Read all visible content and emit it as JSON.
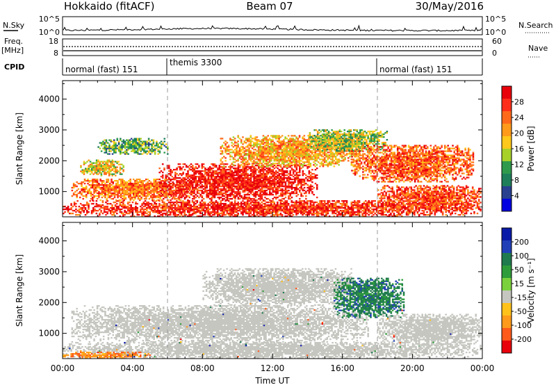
{
  "header": {
    "title": "Hokkaido (fitACF)",
    "beam": "Beam 07",
    "date": "30/May/2016"
  },
  "status_panels": {
    "nsky_label": "N.Sky",
    "nsearch_label": "N.Search",
    "freq_label_1": "Freq.",
    "freq_label_2": "[MHz]",
    "nave_label": "Nave",
    "cpid_label": "CPID",
    "left_ticks_top": [
      "10^5",
      "10^0"
    ],
    "right_ticks_top": [
      "10^5",
      "10^0"
    ],
    "freq_ticks": [
      "18",
      "8"
    ],
    "nave_ticks": [
      "60",
      "0"
    ],
    "cpid_segments": [
      {
        "label": "normal (fast) 151",
        "start": 0,
        "end": 6
      },
      {
        "label": "themis 3300",
        "start": 6,
        "end": 18
      },
      {
        "label": "normal (fast) 151",
        "start": 18,
        "end": 24
      }
    ]
  },
  "chart_data": [
    {
      "type": "heatmap",
      "name": "power-panel",
      "xlabel": "",
      "ylabel": "Slant Range [km]",
      "xlim": [
        0,
        24
      ],
      "ylim": [
        180,
        4600
      ],
      "yticks": [
        1000,
        2000,
        3000,
        4000
      ],
      "xticks": [
        0,
        4,
        8,
        12,
        16,
        20,
        24
      ],
      "colorbar": {
        "label": "Power [dB]",
        "ticks": [
          "28",
          "24",
          "20",
          "16",
          "12",
          "8",
          "4"
        ],
        "colors": [
          "#e8000b",
          "#ff2e1a",
          "#ff6a1a",
          "#ff9a1a",
          "#ffc81a",
          "#a7d128",
          "#2f9a4c",
          "#1e7f5a",
          "#28408f",
          "#0000e0"
        ]
      },
      "vertical_markers_hours": [
        6,
        18
      ],
      "echo_regions": [
        {
          "t0": 0.0,
          "t1": 24.0,
          "r0": 180,
          "r1": 700,
          "level": 0.9
        },
        {
          "t0": 0.5,
          "t1": 7.5,
          "r0": 700,
          "r1": 1400,
          "level": 0.75
        },
        {
          "t0": 1.0,
          "t1": 3.5,
          "r0": 1500,
          "r1": 2000,
          "level": 0.55
        },
        {
          "t0": 5.5,
          "t1": 14.5,
          "r0": 700,
          "r1": 1900,
          "level": 0.95
        },
        {
          "t0": 9.0,
          "t1": 17.0,
          "r0": 1800,
          "r1": 2800,
          "level": 0.65
        },
        {
          "t0": 14.0,
          "t1": 18.5,
          "r0": 2300,
          "r1": 3000,
          "level": 0.45
        },
        {
          "t0": 16.5,
          "t1": 23.5,
          "r0": 1300,
          "r1": 2500,
          "level": 0.8
        },
        {
          "t0": 18.0,
          "t1": 24.0,
          "r0": 400,
          "r1": 1200,
          "level": 0.85
        },
        {
          "t0": 2.0,
          "t1": 6.0,
          "r0": 2200,
          "r1": 2700,
          "level": 0.35
        }
      ]
    },
    {
      "type": "heatmap",
      "name": "velocity-panel",
      "xlabel": "Time UT",
      "ylabel": "Slant Range [km]",
      "xlim": [
        0,
        24
      ],
      "ylim": [
        180,
        4600
      ],
      "yticks": [
        1000,
        2000,
        3000,
        4000
      ],
      "xticks": [
        0,
        4,
        8,
        12,
        16,
        20,
        24
      ],
      "xticklabels": [
        "00:00",
        "04:00",
        "08:00",
        "12:00",
        "16:00",
        "20:00",
        "00:00"
      ],
      "colorbar": {
        "label": "Velocity [m s⁻¹]",
        "ticks": [
          "200",
          "100",
          "50",
          "15",
          "-15",
          "-50",
          "-100",
          "-200"
        ],
        "colors": [
          "#0a1aa8",
          "#2140b8",
          "#1f7a4e",
          "#2e9c3a",
          "#7bd13c",
          "#c6c6c0",
          "#ffc21a",
          "#ff9a1a",
          "#ff5a1a",
          "#e8000b"
        ]
      },
      "vertical_markers_hours": [
        6,
        18
      ],
      "echo_regions": [
        {
          "t0": 0.0,
          "t1": 24.0,
          "r0": 180,
          "r1": 700,
          "v": 0.0
        },
        {
          "t0": 0.5,
          "t1": 17.5,
          "r0": 700,
          "r1": 1900,
          "v": 0.0
        },
        {
          "t0": 8.0,
          "t1": 16.5,
          "r0": 1900,
          "r1": 3100,
          "v": 0.0
        },
        {
          "t0": 15.5,
          "t1": 19.5,
          "r0": 1500,
          "r1": 2800,
          "v": 0.55
        },
        {
          "t0": 18.0,
          "t1": 24.0,
          "r0": 600,
          "r1": 1600,
          "v": 0.0
        },
        {
          "t0": 0.0,
          "t1": 5.0,
          "r0": 180,
          "r1": 380,
          "v": -0.6
        }
      ]
    }
  ]
}
